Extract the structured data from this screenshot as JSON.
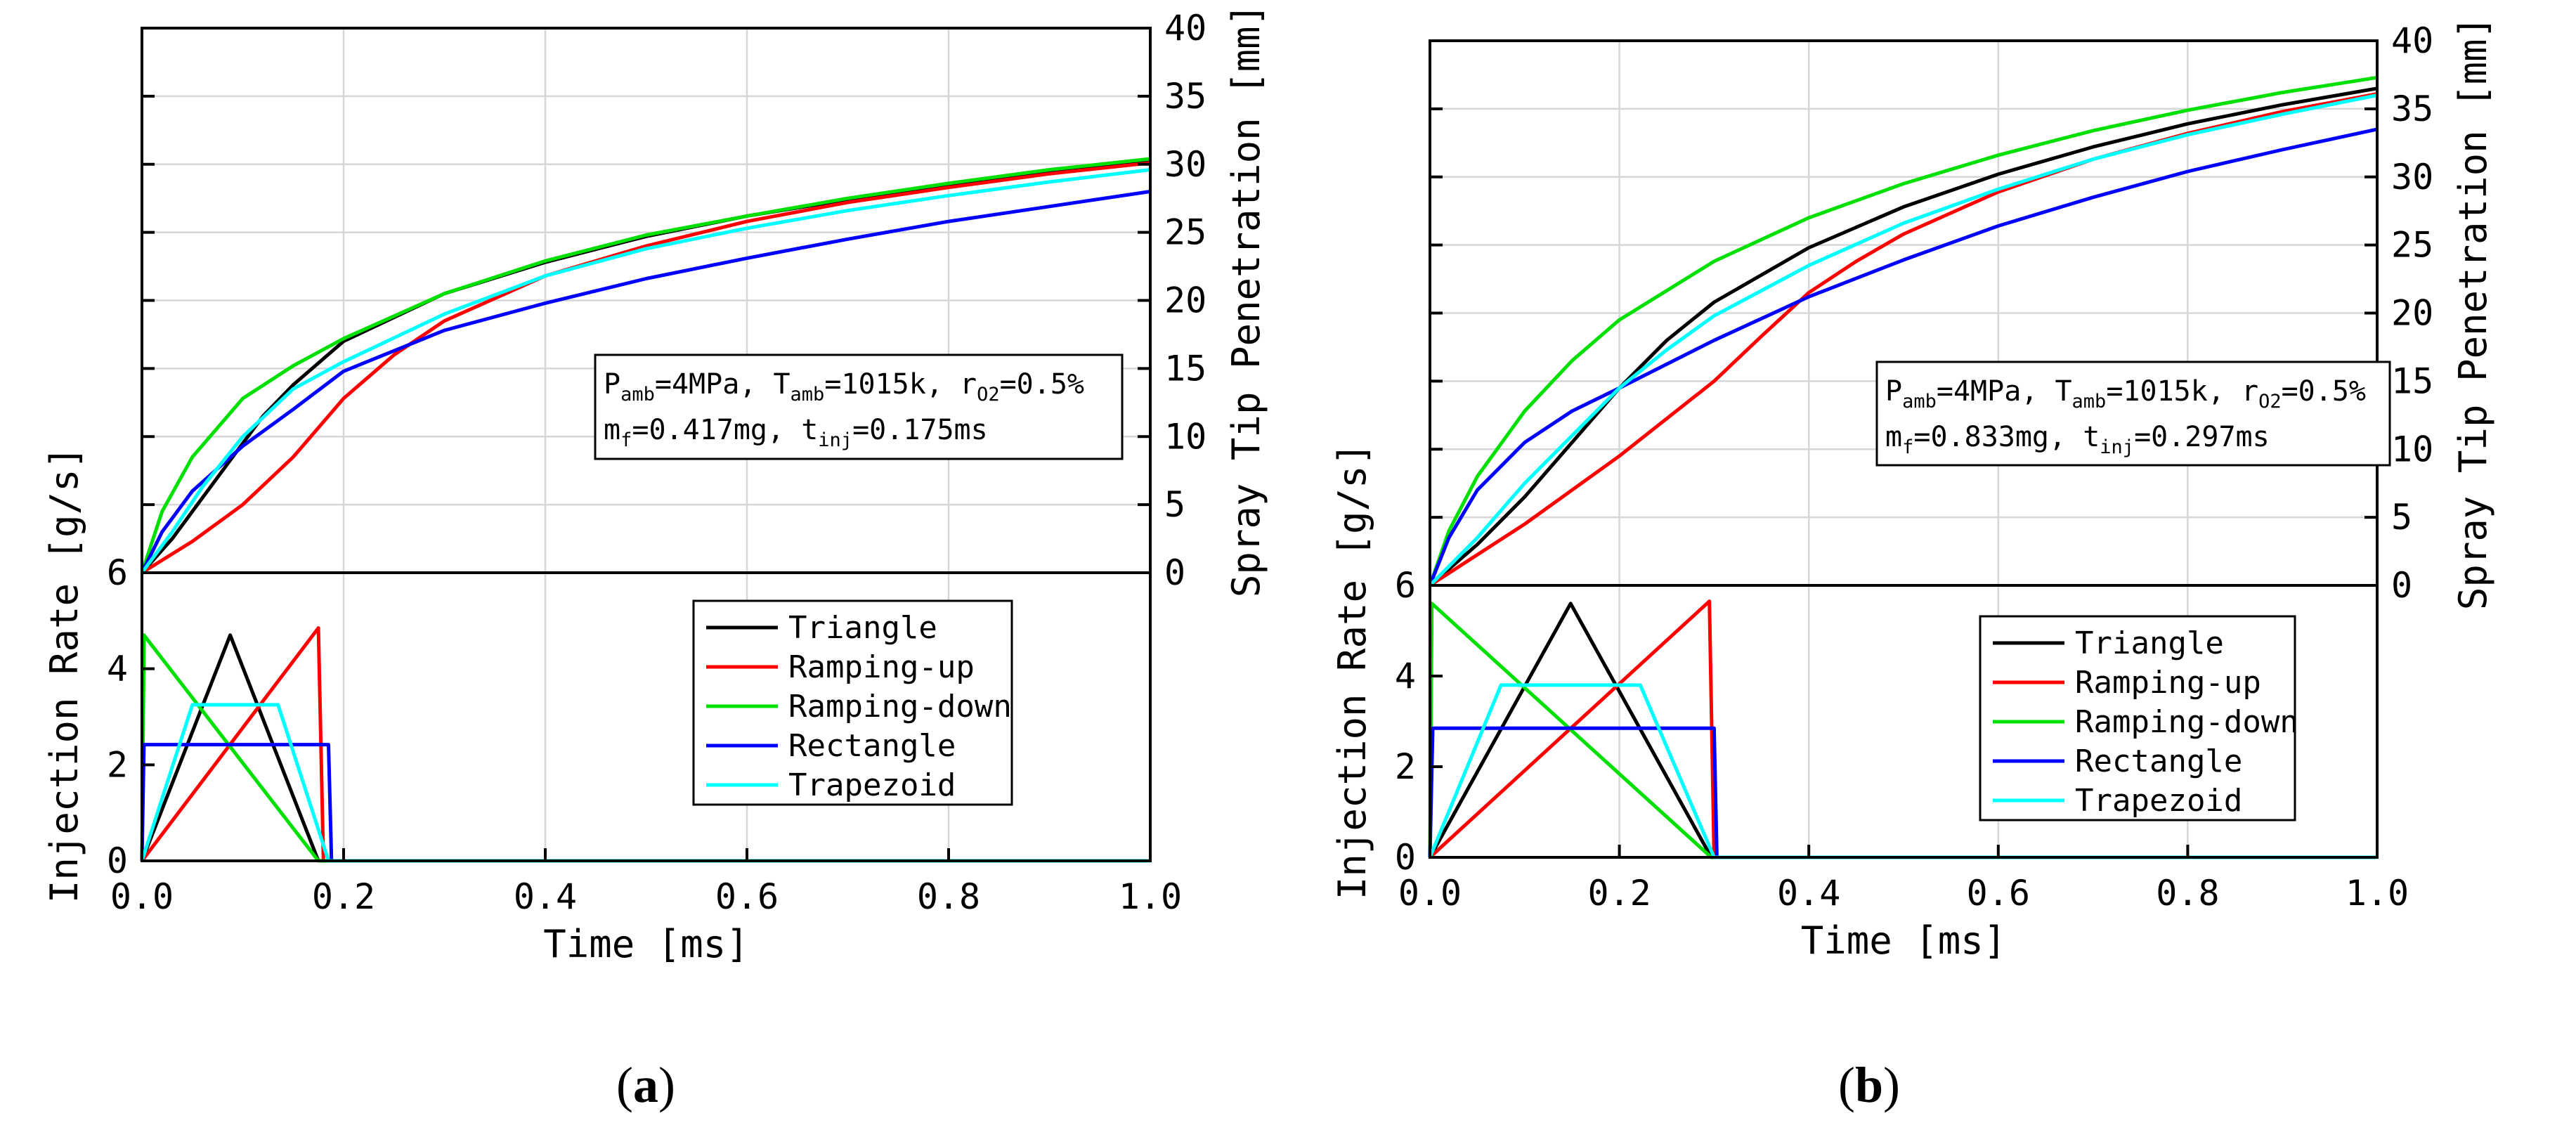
{
  "chart_data": [
    {
      "type": "line",
      "panel_label": "a",
      "xlabel": "Time [ms]",
      "xlim": [
        0,
        1.0
      ],
      "x_ticks": [
        "0.0",
        "0.2",
        "0.4",
        "0.6",
        "0.8",
        "1.0"
      ],
      "top": {
        "ylabel": "Spray Tip Penetration [mm]",
        "ylim": [
          0,
          40
        ],
        "y_ticks": [
          "0",
          "5",
          "10",
          "15",
          "20",
          "25",
          "30",
          "35",
          "40"
        ],
        "series": [
          {
            "name": "Triangle",
            "color": "#000000",
            "x": [
              0,
              0.03,
              0.06,
              0.09,
              0.12,
              0.15,
              0.2,
              0.3,
              0.4,
              0.5,
              0.6,
              0.7,
              0.8,
              0.9,
              1.0
            ],
            "y": [
              0,
              2.5,
              5.5,
              8.5,
              11.5,
              13.8,
              17,
              20.5,
              22.8,
              24.7,
              26.2,
              27.4,
              28.5,
              29.4,
              30.2
            ]
          },
          {
            "name": "Ramping-up",
            "color": "#ff0000",
            "x": [
              0,
              0.05,
              0.1,
              0.15,
              0.2,
              0.25,
              0.3,
              0.4,
              0.5,
              0.6,
              0.7,
              0.8,
              0.9,
              1.0
            ],
            "y": [
              0,
              2.3,
              5.0,
              8.5,
              12.8,
              16.0,
              18.5,
              21.8,
              24.0,
              25.8,
              27.2,
              28.3,
              29.3,
              30.1
            ]
          },
          {
            "name": "Ramping-down",
            "color": "#00e000",
            "x": [
              0,
              0.02,
              0.05,
              0.1,
              0.15,
              0.2,
              0.3,
              0.4,
              0.5,
              0.6,
              0.7,
              0.8,
              0.9,
              1.0
            ],
            "y": [
              0,
              4.5,
              8.5,
              12.8,
              15.2,
              17.2,
              20.5,
              22.9,
              24.8,
              26.2,
              27.5,
              28.6,
              29.6,
              30.4
            ]
          },
          {
            "name": "Rectangle",
            "color": "#0000ff",
            "x": [
              0,
              0.02,
              0.05,
              0.1,
              0.15,
              0.2,
              0.3,
              0.4,
              0.5,
              0.6,
              0.7,
              0.8,
              0.9,
              1.0
            ],
            "y": [
              0,
              3.0,
              6.0,
              9.3,
              12.0,
              14.8,
              17.8,
              19.8,
              21.6,
              23.1,
              24.5,
              25.8,
              26.9,
              28.0
            ]
          },
          {
            "name": "Trapezoid",
            "color": "#00ffff",
            "x": [
              0,
              0.03,
              0.06,
              0.1,
              0.15,
              0.2,
              0.3,
              0.4,
              0.5,
              0.6,
              0.7,
              0.8,
              0.9,
              1.0
            ],
            "y": [
              0,
              3.0,
              6.3,
              10.0,
              13.5,
              15.5,
              19.0,
              21.8,
              23.8,
              25.3,
              26.6,
              27.7,
              28.7,
              29.6
            ]
          }
        ]
      },
      "bottom": {
        "ylabel": "Injection Rate [g/s]",
        "ylim": [
          0,
          6
        ],
        "y_ticks": [
          "0",
          "2",
          "4",
          "6"
        ],
        "series": [
          {
            "name": "Triangle",
            "color": "#000000",
            "x": [
              0,
              0.0875,
              0.175,
              1.0
            ],
            "y": [
              0,
              4.7,
              0,
              0
            ]
          },
          {
            "name": "Ramping-up",
            "color": "#ff0000",
            "x": [
              0,
              0.175,
              0.18,
              1.0
            ],
            "y": [
              0,
              4.85,
              0,
              0
            ]
          },
          {
            "name": "Ramping-down",
            "color": "#00e000",
            "x": [
              0,
              0.002,
              0.175,
              1.0
            ],
            "y": [
              0,
              4.7,
              0,
              0
            ]
          },
          {
            "name": "Rectangle",
            "color": "#0000ff",
            "x": [
              0,
              0.002,
              0.185,
              0.188,
              1.0
            ],
            "y": [
              0,
              2.42,
              2.42,
              0,
              0
            ]
          },
          {
            "name": "Trapezoid",
            "color": "#00ffff",
            "x": [
              0,
              0.05,
              0.135,
              0.185,
              1.0
            ],
            "y": [
              0,
              3.25,
              3.25,
              0,
              0
            ]
          }
        ]
      },
      "legend": [
        "Triangle",
        "Ramping-up",
        "Ramping-down",
        "Rectangle",
        "Trapezoid"
      ],
      "annotation": {
        "line1": {
          "p": "P",
          "p_sub": "amb",
          "p_val": "=4MPa, ",
          "t": "T",
          "t_sub": "amb",
          "t_val": "=1015k, ",
          "r": "r",
          "r_sub": "O2",
          "r_val": "=0.5%"
        },
        "line2": {
          "m": "m",
          "m_sub": "f",
          "m_val": "=0.417mg, ",
          "t": "t",
          "t_sub": "inj",
          "t_val": "=0.175ms"
        }
      }
    },
    {
      "type": "line",
      "panel_label": "b",
      "xlabel": "Time [ms]",
      "xlim": [
        0,
        1.0
      ],
      "x_ticks": [
        "0.0",
        "0.2",
        "0.4",
        "0.6",
        "0.8",
        "1.0"
      ],
      "top": {
        "ylabel": "Spray Tip Penetration [mm]",
        "ylim": [
          0,
          40
        ],
        "y_ticks": [
          "0",
          "5",
          "10",
          "15",
          "20",
          "25",
          "30",
          "35",
          "40"
        ],
        "series": [
          {
            "name": "Triangle",
            "color": "#000000",
            "x": [
              0,
              0.05,
              0.1,
              0.15,
              0.2,
              0.25,
              0.3,
              0.4,
              0.5,
              0.6,
              0.7,
              0.8,
              0.9,
              1.0
            ],
            "y": [
              0,
              3.0,
              6.5,
              10.5,
              14.5,
              18.0,
              20.8,
              24.8,
              27.8,
              30.2,
              32.2,
              33.9,
              35.3,
              36.5
            ]
          },
          {
            "name": "Ramping-up",
            "color": "#ff0000",
            "x": [
              0,
              0.1,
              0.2,
              0.3,
              0.35,
              0.4,
              0.45,
              0.5,
              0.6,
              0.7,
              0.8,
              0.9,
              1.0
            ],
            "y": [
              0,
              4.5,
              9.5,
              15.0,
              18.3,
              21.5,
              23.8,
              25.8,
              28.9,
              31.3,
              33.2,
              34.8,
              36.1
            ]
          },
          {
            "name": "Ramping-down",
            "color": "#00e000",
            "x": [
              0,
              0.02,
              0.05,
              0.1,
              0.15,
              0.2,
              0.3,
              0.4,
              0.5,
              0.6,
              0.7,
              0.8,
              0.9,
              1.0
            ],
            "y": [
              0,
              4.0,
              8.0,
              12.8,
              16.5,
              19.5,
              23.8,
              27.0,
              29.5,
              31.6,
              33.4,
              34.9,
              36.2,
              37.3
            ]
          },
          {
            "name": "Rectangle",
            "color": "#0000ff",
            "x": [
              0,
              0.02,
              0.05,
              0.1,
              0.15,
              0.2,
              0.3,
              0.4,
              0.5,
              0.6,
              0.7,
              0.8,
              0.9,
              1.0
            ],
            "y": [
              0,
              3.5,
              7.0,
              10.5,
              12.8,
              14.5,
              18.0,
              21.2,
              23.9,
              26.4,
              28.5,
              30.4,
              32.0,
              33.5
            ]
          },
          {
            "name": "Trapezoid",
            "color": "#00ffff",
            "x": [
              0,
              0.05,
              0.1,
              0.15,
              0.2,
              0.25,
              0.3,
              0.4,
              0.5,
              0.6,
              0.7,
              0.8,
              0.9,
              1.0
            ],
            "y": [
              0,
              3.5,
              7.5,
              11.0,
              14.5,
              17.3,
              19.8,
              23.5,
              26.6,
              29.1,
              31.3,
              33.1,
              34.6,
              36.0
            ]
          }
        ]
      },
      "bottom": {
        "ylabel": "Injection Rate [g/s]",
        "ylim": [
          0,
          6
        ],
        "y_ticks": [
          "0",
          "2",
          "4",
          "6"
        ],
        "series": [
          {
            "name": "Triangle",
            "color": "#000000",
            "x": [
              0,
              0.1485,
              0.297,
              1.0
            ],
            "y": [
              0,
              5.6,
              0,
              0
            ]
          },
          {
            "name": "Ramping-up",
            "color": "#ff0000",
            "x": [
              0,
              0.295,
              0.3,
              1.0
            ],
            "y": [
              0,
              5.65,
              0,
              0
            ]
          },
          {
            "name": "Ramping-down",
            "color": "#00e000",
            "x": [
              0,
              0.002,
              0.297,
              1.0
            ],
            "y": [
              0,
              5.6,
              0,
              0
            ]
          },
          {
            "name": "Rectangle",
            "color": "#0000ff",
            "x": [
              0,
              0.003,
              0.3,
              0.303,
              1.0
            ],
            "y": [
              0,
              2.85,
              2.85,
              0,
              0
            ]
          },
          {
            "name": "Trapezoid",
            "color": "#00ffff",
            "x": [
              0,
              0.075,
              0.222,
              0.3,
              1.0
            ],
            "y": [
              0,
              3.8,
              3.8,
              0,
              0
            ]
          }
        ]
      },
      "legend": [
        "Triangle",
        "Ramping-up",
        "Ramping-down",
        "Rectangle",
        "Trapezoid"
      ],
      "annotation": {
        "line1": {
          "p": "P",
          "p_sub": "amb",
          "p_val": "=4MPa, ",
          "t": "T",
          "t_sub": "amb",
          "t_val": "=1015k, ",
          "r": "r",
          "r_sub": "O2",
          "r_val": "=0.5%"
        },
        "line2": {
          "m": "m",
          "m_sub": "f",
          "m_val": "=0.833mg, ",
          "t": "t",
          "t_sub": "inj",
          "t_val": "=0.297ms"
        }
      }
    }
  ]
}
